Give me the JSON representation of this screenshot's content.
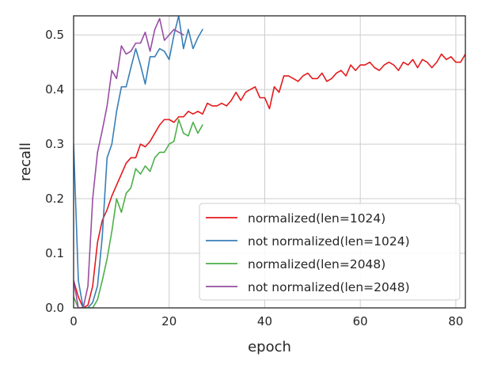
{
  "chart_data": {
    "type": "line",
    "xlabel": "epoch",
    "ylabel": "recall",
    "xlim": [
      0,
      82
    ],
    "ylim": [
      0,
      0.535
    ],
    "xticks": [
      0,
      20,
      40,
      60,
      80
    ],
    "xtick_labels": [
      "0",
      "20",
      "40",
      "60",
      "80"
    ],
    "yticks": [
      0.0,
      0.1,
      0.2,
      0.3,
      0.4,
      0.5
    ],
    "ytick_labels": [
      "0.0",
      "0.1",
      "0.2",
      "0.3",
      "0.4",
      "0.5"
    ],
    "grid": true,
    "legend_position": "lower-right",
    "series": [
      {
        "name": "normalized(len=1024)",
        "color": "#e41a1c",
        "x": [
          0,
          1,
          2,
          3,
          4,
          5,
          6,
          7,
          8,
          9,
          10,
          11,
          12,
          13,
          14,
          15,
          16,
          17,
          18,
          19,
          20,
          21,
          22,
          23,
          24,
          25,
          26,
          27,
          28,
          29,
          30,
          31,
          32,
          33,
          34,
          35,
          36,
          37,
          38,
          39,
          40,
          41,
          42,
          43,
          44,
          45,
          46,
          47,
          48,
          49,
          50,
          51,
          52,
          53,
          54,
          55,
          56,
          57,
          58,
          59,
          60,
          61,
          62,
          63,
          64,
          65,
          66,
          67,
          68,
          69,
          70,
          71,
          72,
          73,
          74,
          75,
          76,
          77,
          78,
          79,
          80,
          81,
          82
        ],
        "values": [
          0.05,
          0.02,
          0.0,
          0.005,
          0.04,
          0.12,
          0.16,
          0.18,
          0.205,
          0.225,
          0.245,
          0.265,
          0.275,
          0.275,
          0.3,
          0.295,
          0.305,
          0.32,
          0.335,
          0.345,
          0.345,
          0.34,
          0.35,
          0.35,
          0.36,
          0.355,
          0.36,
          0.355,
          0.375,
          0.37,
          0.37,
          0.375,
          0.37,
          0.38,
          0.395,
          0.38,
          0.395,
          0.4,
          0.405,
          0.385,
          0.385,
          0.365,
          0.405,
          0.395,
          0.425,
          0.425,
          0.42,
          0.415,
          0.425,
          0.43,
          0.42,
          0.42,
          0.43,
          0.415,
          0.42,
          0.43,
          0.435,
          0.425,
          0.445,
          0.435,
          0.445,
          0.445,
          0.45,
          0.44,
          0.435,
          0.445,
          0.45,
          0.445,
          0.435,
          0.45,
          0.445,
          0.455,
          0.44,
          0.455,
          0.45,
          0.44,
          0.45,
          0.465,
          0.455,
          0.46,
          0.45,
          0.45,
          0.465
        ]
      },
      {
        "name": "not normalized(len=1024)",
        "color": "#377eb8",
        "x": [
          0,
          1,
          2,
          3,
          4,
          5,
          6,
          7,
          8,
          9,
          10,
          11,
          12,
          13,
          14,
          15,
          16,
          17,
          18,
          19,
          20,
          21,
          22,
          23,
          24,
          25,
          26,
          27
        ],
        "values": [
          0.3,
          0.05,
          0.0,
          0.0,
          0.01,
          0.04,
          0.13,
          0.275,
          0.3,
          0.36,
          0.405,
          0.405,
          0.44,
          0.475,
          0.445,
          0.41,
          0.46,
          0.46,
          0.475,
          0.47,
          0.455,
          0.5,
          0.535,
          0.475,
          0.51,
          0.475,
          0.495,
          0.51
        ]
      },
      {
        "name": "normalized(len=2048)",
        "color": "#4daf4a",
        "x": [
          0,
          1,
          2,
          3,
          4,
          5,
          6,
          7,
          8,
          9,
          10,
          11,
          12,
          13,
          14,
          15,
          16,
          17,
          18,
          19,
          20,
          21,
          22,
          23,
          24,
          25,
          26,
          27
        ],
        "values": [
          0.02,
          0.0,
          0.0,
          0.0,
          0.0,
          0.015,
          0.05,
          0.09,
          0.14,
          0.2,
          0.175,
          0.21,
          0.22,
          0.255,
          0.245,
          0.26,
          0.25,
          0.275,
          0.285,
          0.285,
          0.3,
          0.305,
          0.345,
          0.32,
          0.315,
          0.34,
          0.32,
          0.335
        ]
      },
      {
        "name": "not normalized(len=2048)",
        "color": "#984ea3",
        "x": [
          0,
          1,
          2,
          3,
          4,
          5,
          6,
          7,
          8,
          9,
          10,
          11,
          12,
          13,
          14,
          15,
          16,
          17,
          18,
          19,
          20,
          21,
          22,
          23
        ],
        "values": [
          0.05,
          0.0,
          0.0,
          0.04,
          0.2,
          0.285,
          0.325,
          0.37,
          0.435,
          0.42,
          0.48,
          0.465,
          0.47,
          0.485,
          0.485,
          0.505,
          0.47,
          0.51,
          0.53,
          0.49,
          0.5,
          0.51,
          0.505,
          0.5
        ]
      }
    ]
  }
}
